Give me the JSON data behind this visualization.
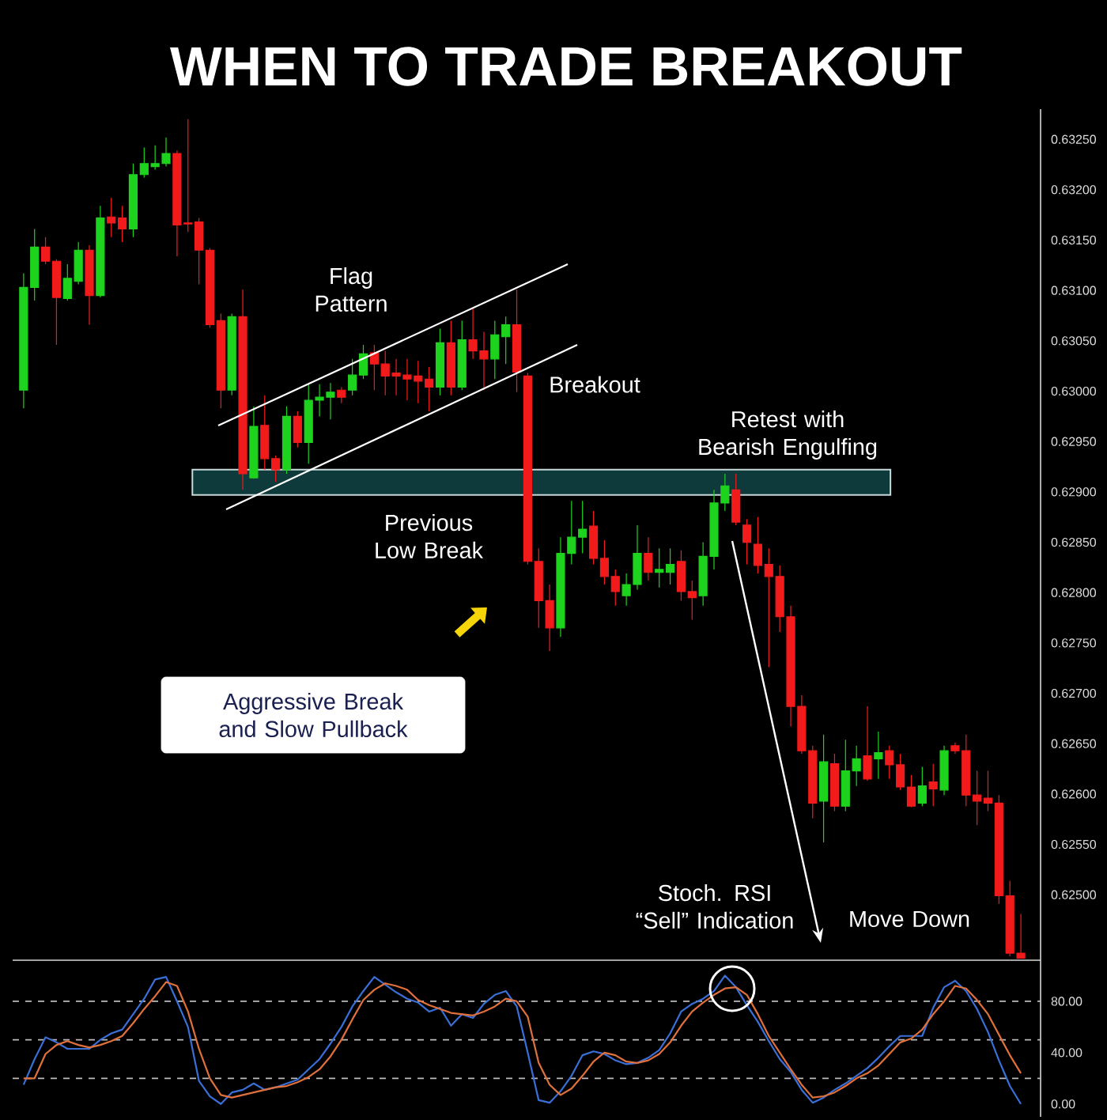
{
  "chart_data": [
    {
      "type": "candlestick",
      "title": "WHEN TO TRADE BREAKOUT",
      "categories": [
        null,
        null,
        null,
        null,
        null,
        null,
        null,
        null,
        null,
        null,
        null,
        null,
        null,
        null,
        null,
        null,
        null,
        null,
        null,
        null,
        null,
        null,
        null,
        null,
        null,
        null,
        null,
        null,
        null,
        null,
        null,
        null,
        null,
        null,
        null,
        null,
        null,
        null,
        null,
        null,
        null,
        null,
        null,
        null,
        null,
        null,
        null,
        null,
        null,
        null,
        null,
        null,
        null,
        null,
        null,
        null,
        null,
        null,
        null,
        null,
        null,
        null,
        null,
        null,
        null,
        null,
        null,
        null,
        null,
        null,
        null,
        null,
        null,
        null,
        null,
        null,
        null,
        null,
        null,
        null,
        null,
        null,
        null,
        null,
        null,
        null,
        null,
        null,
        null,
        null,
        null,
        null
      ],
      "ohlc": [
        [
          0.63001,
          0.63117,
          0.62983,
          0.63103
        ],
        [
          0.63103,
          0.63161,
          0.6309,
          0.63143
        ],
        [
          0.63143,
          0.63153,
          0.63126,
          0.63129
        ],
        [
          0.63129,
          0.63131,
          0.63046,
          0.63093
        ],
        [
          0.63092,
          0.63126,
          0.6309,
          0.63112
        ],
        [
          0.63109,
          0.63148,
          0.63106,
          0.6314
        ],
        [
          0.6314,
          0.63145,
          0.63066,
          0.63095
        ],
        [
          0.63095,
          0.63184,
          0.63093,
          0.63172
        ],
        [
          0.63173,
          0.63192,
          0.63153,
          0.63167
        ],
        [
          0.63172,
          0.63184,
          0.63148,
          0.63161
        ],
        [
          0.63161,
          0.63226,
          0.63153,
          0.63215
        ],
        [
          0.63215,
          0.63242,
          0.63212,
          0.63226
        ],
        [
          0.63223,
          0.63244,
          0.6322,
          0.63226
        ],
        [
          0.63226,
          0.63252,
          0.63223,
          0.63236
        ],
        [
          0.63236,
          0.63239,
          0.63134,
          0.63165
        ],
        [
          0.63167,
          0.6327,
          0.63158,
          0.63166
        ],
        [
          0.63168,
          0.63172,
          0.63106,
          0.6314
        ],
        [
          0.6314,
          0.63142,
          0.63063,
          0.63066
        ],
        [
          0.6307,
          0.63077,
          0.62983,
          0.63001
        ],
        [
          0.63001,
          0.63077,
          0.62996,
          0.63074
        ],
        [
          0.63074,
          0.63101,
          0.62902,
          0.62918
        ],
        [
          0.62914,
          0.62985,
          0.62913,
          0.62965
        ],
        [
          0.62966,
          0.62996,
          0.62922,
          0.62933
        ],
        [
          0.62933,
          0.62936,
          0.6291,
          0.62922
        ],
        [
          0.62922,
          0.62985,
          0.62918,
          0.62975
        ],
        [
          0.62975,
          0.6298,
          0.62944,
          0.62949
        ],
        [
          0.62949,
          0.63007,
          0.62928,
          0.62991
        ],
        [
          0.62991,
          0.63007,
          0.62975,
          0.62994
        ],
        [
          0.62994,
          0.63008,
          0.62972,
          0.62999
        ],
        [
          0.63001,
          0.63004,
          0.62988,
          0.62994
        ],
        [
          0.63001,
          0.63032,
          0.62996,
          0.63016
        ],
        [
          0.63016,
          0.63046,
          0.63012,
          0.63037
        ],
        [
          0.63038,
          0.63046,
          0.63001,
          0.63027
        ],
        [
          0.63027,
          0.6304,
          0.62996,
          0.63015
        ],
        [
          0.63018,
          0.63032,
          0.62996,
          0.63015
        ],
        [
          0.63016,
          0.63032,
          0.62991,
          0.63012
        ],
        [
          0.63015,
          0.6303,
          0.62988,
          0.6301
        ],
        [
          0.63012,
          0.63024,
          0.6298,
          0.63004
        ],
        [
          0.63004,
          0.63062,
          0.62996,
          0.63048
        ],
        [
          0.63048,
          0.6307,
          0.62996,
          0.63004
        ],
        [
          0.63004,
          0.6307,
          0.63001,
          0.63051
        ],
        [
          0.63051,
          0.63082,
          0.63032,
          0.6304
        ],
        [
          0.6304,
          0.63059,
          0.63001,
          0.63032
        ],
        [
          0.63032,
          0.6307,
          0.63012,
          0.63056
        ],
        [
          0.63054,
          0.63074,
          0.63027,
          0.63066
        ],
        [
          0.63066,
          0.63101,
          0.62999,
          0.63019
        ],
        [
          0.63015,
          0.63018,
          0.62828,
          0.62831
        ],
        [
          0.62831,
          0.62844,
          0.62765,
          0.62792
        ],
        [
          0.62792,
          0.62808,
          0.62742,
          0.62765
        ],
        [
          0.62765,
          0.62855,
          0.62756,
          0.62839
        ],
        [
          0.62839,
          0.62891,
          0.62828,
          0.62855
        ],
        [
          0.62855,
          0.62891,
          0.62839,
          0.62863
        ],
        [
          0.62866,
          0.62881,
          0.62828,
          0.62834
        ],
        [
          0.62834,
          0.62852,
          0.62808,
          0.62816
        ],
        [
          0.62816,
          0.62823,
          0.62787,
          0.62801
        ],
        [
          0.62797,
          0.62819,
          0.62787,
          0.62808
        ],
        [
          0.62808,
          0.62867,
          0.62803,
          0.62839
        ],
        [
          0.62839,
          0.62855,
          0.62812,
          0.6282
        ],
        [
          0.6282,
          0.62844,
          0.62805,
          0.62823
        ],
        [
          0.6282,
          0.62844,
          0.62808,
          0.62828
        ],
        [
          0.62831,
          0.62842,
          0.62792,
          0.62801
        ],
        [
          0.62801,
          0.62812,
          0.62773,
          0.62795
        ],
        [
          0.62797,
          0.6285,
          0.62787,
          0.62836
        ],
        [
          0.62836,
          0.62902,
          0.62823,
          0.62889
        ],
        [
          0.62889,
          0.62918,
          0.62881,
          0.62906
        ],
        [
          0.62902,
          0.62918,
          0.62867,
          0.6287
        ],
        [
          0.62867,
          0.62873,
          0.62828,
          0.6285
        ],
        [
          0.62848,
          0.62875,
          0.62819,
          0.62827
        ],
        [
          0.62828,
          0.62844,
          0.62726,
          0.62816
        ],
        [
          0.62816,
          0.62827,
          0.62761,
          0.62776
        ],
        [
          0.62776,
          0.62787,
          0.62667,
          0.62687
        ],
        [
          0.62687,
          0.62698,
          0.6264,
          0.62643
        ],
        [
          0.62643,
          0.62648,
          0.62576,
          0.62591
        ],
        [
          0.62593,
          0.62659,
          0.62552,
          0.62632
        ],
        [
          0.6263,
          0.6264,
          0.62583,
          0.62588
        ],
        [
          0.62588,
          0.62654,
          0.62583,
          0.62623
        ],
        [
          0.62623,
          0.62648,
          0.62608,
          0.62635
        ],
        [
          0.62638,
          0.62687,
          0.62613,
          0.62615
        ],
        [
          0.62635,
          0.62662,
          0.62615,
          0.62641
        ],
        [
          0.62643,
          0.62648,
          0.62615,
          0.62629
        ],
        [
          0.62629,
          0.6264,
          0.62604,
          0.62607
        ],
        [
          0.62607,
          0.62619,
          0.62587,
          0.62588
        ],
        [
          0.62591,
          0.62627,
          0.62588,
          0.62608
        ],
        [
          0.62612,
          0.6263,
          0.62588,
          0.62605
        ],
        [
          0.62604,
          0.62648,
          0.62599,
          0.62643
        ],
        [
          0.62648,
          0.62651,
          0.6264,
          0.62643
        ],
        [
          0.62643,
          0.62659,
          0.62588,
          0.62599
        ],
        [
          0.62599,
          0.62623,
          0.62569,
          0.62593
        ],
        [
          0.62596,
          0.62623,
          0.62583,
          0.62591
        ],
        [
          0.62591,
          0.62599,
          0.62491,
          0.62499
        ],
        [
          0.62499,
          0.62514,
          0.62439,
          0.62442
        ],
        [
          0.62442,
          0.62481,
          0.62437,
          0.62437
        ]
      ],
      "colors": [
        "#1ed31e",
        "#1ed31e",
        "#f21b1b",
        "#f21b1b",
        "#1ed31e",
        "#1ed31e",
        "#f21b1b",
        "#1ed31e",
        "#f21b1b",
        "#f21b1b",
        "#1ed31e",
        "#1ed31e",
        "#1ed31e",
        "#1ed31e",
        "#f21b1b",
        "#f21b1b",
        "#f21b1b",
        "#f21b1b",
        "#f21b1b",
        "#1ed31e",
        "#f21b1b",
        "#1ed31e",
        "#f21b1b",
        "#f21b1b",
        "#1ed31e",
        "#f21b1b",
        "#1ed31e",
        "#1ed31e",
        "#1ed31e",
        "#f21b1b",
        "#1ed31e",
        "#1ed31e",
        "#f21b1b",
        "#f21b1b",
        "#f21b1b",
        "#f21b1b",
        "#f21b1b",
        "#f21b1b",
        "#1ed31e",
        "#f21b1b",
        "#1ed31e",
        "#f21b1b",
        "#f21b1b",
        "#1ed31e",
        "#1ed31e",
        "#f21b1b",
        "#f21b1b",
        "#f21b1b",
        "#f21b1b",
        "#1ed31e",
        "#1ed31e",
        "#1ed31e",
        "#f21b1b",
        "#f21b1b",
        "#f21b1b",
        "#1ed31e",
        "#1ed31e",
        "#f21b1b",
        "#1ed31e",
        "#1ed31e",
        "#f21b1b",
        "#f21b1b",
        "#1ed31e",
        "#1ed31e",
        "#1ed31e",
        "#f21b1b",
        "#f21b1b",
        "#f21b1b",
        "#f21b1b",
        "#f21b1b",
        "#f21b1b",
        "#f21b1b",
        "#f21b1b",
        "#1ed31e",
        "#f21b1b",
        "#1ed31e",
        "#1ed31e",
        "#f21b1b",
        "#1ed31e",
        "#f21b1b",
        "#f21b1b",
        "#f21b1b",
        "#1ed31e",
        "#f21b1b",
        "#1ed31e",
        "#f21b1b",
        "#f21b1b",
        "#f21b1b",
        "#f21b1b",
        "#f21b1b",
        "#f21b1b",
        "#f21b1b"
      ],
      "ylim": [
        0.62435,
        0.6328
      ],
      "yticks": [
        {
          "value": 0.625,
          "label": "0.62500"
        },
        {
          "value": 0.6255,
          "label": "0.62550"
        },
        {
          "value": 0.626,
          "label": "0.62600"
        },
        {
          "value": 0.6265,
          "label": "0.62650"
        },
        {
          "value": 0.627,
          "label": "0.62700"
        },
        {
          "value": 0.6275,
          "label": "0.62750"
        },
        {
          "value": 0.628,
          "label": "0.62800"
        },
        {
          "value": 0.6285,
          "label": "0.62850"
        },
        {
          "value": 0.629,
          "label": "0.62900"
        },
        {
          "value": 0.6295,
          "label": "0.62950"
        },
        {
          "value": 0.63,
          "label": "0.63000"
        },
        {
          "value": 0.6305,
          "label": "0.63050"
        },
        {
          "value": 0.631,
          "label": "0.63100"
        },
        {
          "value": 0.6315,
          "label": "0.63150"
        },
        {
          "value": 0.632,
          "label": "0.63200"
        },
        {
          "value": 0.6325,
          "label": "0.63250"
        }
      ],
      "bands": [
        {
          "axis": "y",
          "from": 0.62897,
          "to": 0.62922,
          "color": "#0e3a3c"
        }
      ],
      "annotations": [
        "Flag Pattern",
        "Breakout",
        "Retest with Bearish Engulfing",
        "Previous Low Break",
        "Aggressive Break and Slow Pullback",
        "Move Down",
        "Stoch. RSI “Sell” Indication"
      ]
    },
    {
      "type": "line",
      "categories": [
        null,
        null,
        null,
        null,
        null,
        null,
        null,
        null,
        null,
        null,
        null,
        null,
        null,
        null,
        null,
        null,
        null,
        null,
        null,
        null,
        null,
        null,
        null,
        null,
        null,
        null,
        null,
        null,
        null,
        null,
        null,
        null,
        null,
        null,
        null,
        null,
        null,
        null,
        null,
        null,
        null,
        null,
        null,
        null,
        null,
        null,
        null,
        null,
        null,
        null,
        null,
        null,
        null,
        null,
        null,
        null,
        null,
        null,
        null,
        null,
        null,
        null,
        null,
        null,
        null,
        null,
        null,
        null,
        null,
        null,
        null,
        null,
        null,
        null,
        null,
        null,
        null,
        null,
        null,
        null,
        null,
        null,
        null,
        null,
        null,
        null,
        null,
        null,
        null,
        null,
        null,
        null
      ],
      "series": [
        {
          "color": "#3a6fd8",
          "values": [
            15,
            35,
            52,
            48,
            43,
            43,
            43,
            50,
            55,
            58,
            70,
            82,
            97,
            99,
            80,
            60,
            18,
            6,
            0,
            9,
            11,
            16,
            11,
            13,
            16,
            19,
            27,
            35,
            47,
            60,
            76,
            88,
            99,
            93,
            87,
            82,
            79,
            72,
            75,
            61,
            70,
            67,
            78,
            85,
            88,
            76,
            40,
            3,
            1,
            10,
            22,
            38,
            41,
            39,
            34,
            31,
            32,
            36,
            42,
            55,
            72,
            78,
            82,
            88,
            100,
            91,
            77,
            64,
            49,
            35,
            25,
            11,
            1,
            5,
            11,
            16,
            22,
            28,
            36,
            45,
            53,
            53,
            53,
            75,
            91,
            96,
            88,
            74,
            56,
            34,
            14,
            0
          ]
        },
        {
          "color": "#e0703c",
          "values": [
            20,
            20,
            39,
            46,
            49,
            46,
            44,
            46,
            49,
            53,
            63,
            74,
            84,
            95,
            92,
            72,
            43,
            20,
            7,
            5,
            7,
            9,
            11,
            13,
            14,
            17,
            21,
            27,
            37,
            50,
            66,
            81,
            89,
            94,
            92,
            89,
            81,
            77,
            74,
            71,
            70,
            69,
            72,
            76,
            82,
            80,
            68,
            32,
            15,
            7,
            12,
            22,
            33,
            40,
            38,
            33,
            32,
            34,
            39,
            48,
            61,
            72,
            79,
            85,
            90,
            91,
            85,
            70,
            53,
            40,
            27,
            15,
            5,
            6,
            9,
            14,
            20,
            24,
            30,
            39,
            48,
            51,
            58,
            70,
            80,
            92,
            90,
            81,
            70,
            54,
            38,
            24
          ]
        }
      ],
      "ylim": [
        -10,
        112
      ],
      "yticks": [
        {
          "value": 0,
          "label": "0.00"
        },
        {
          "value": 40,
          "label": "40.00"
        },
        {
          "value": 80,
          "label": "80.00"
        }
      ],
      "ref_lines": [
        {
          "axis": "y",
          "value": 80,
          "color": "#bbbbbb",
          "line_style": "dashed"
        },
        {
          "axis": "y",
          "value": 50,
          "color": "#bbbbbb",
          "line_style": "dashed"
        },
        {
          "axis": "y",
          "value": 20,
          "color": "#bbbbbb",
          "line_style": "dashed"
        }
      ],
      "marker": "none"
    }
  ]
}
